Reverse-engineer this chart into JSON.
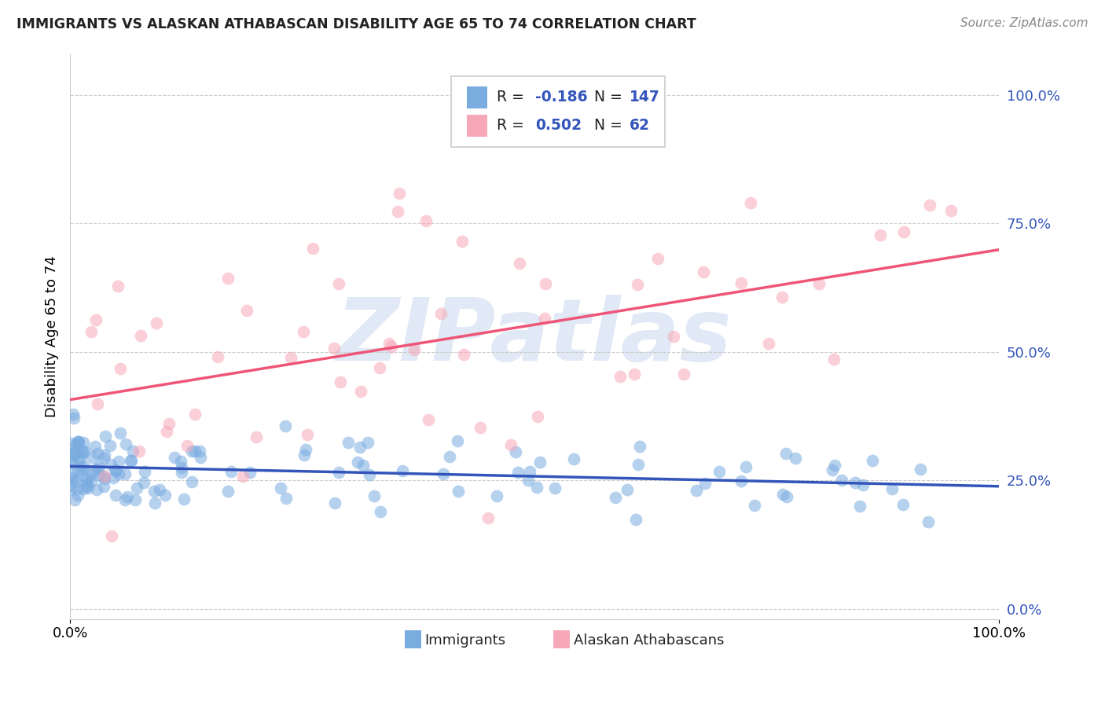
{
  "title": "IMMIGRANTS VS ALASKAN ATHABASCAN DISABILITY AGE 65 TO 74 CORRELATION CHART",
  "source": "Source: ZipAtlas.com",
  "ylabel": "Disability Age 65 to 74",
  "blue_R": -0.186,
  "blue_N": 147,
  "pink_R": 0.502,
  "pink_N": 62,
  "blue_label": "Immigrants",
  "pink_label": "Alaskan Athabascans",
  "blue_color": "#7AACE0",
  "pink_color": "#F7A8B8",
  "blue_line_color": "#3355BB",
  "pink_line_color": "#EE5577",
  "watermark": "ZIPatlas",
  "watermark_color": "#C8D8EE",
  "background_color": "#FFFFFF",
  "blue_line_y0": 0.28,
  "blue_line_y1": 0.245,
  "pink_line_y0": 0.35,
  "pink_line_y1": 0.75,
  "ytick_positions": [
    0.0,
    0.25,
    0.5,
    0.75,
    1.0
  ],
  "ytick_labels": [
    "0.0%",
    "25.0%",
    "50.0%",
    "75.0%",
    "100.0%"
  ],
  "xtick_positions": [
    0.0,
    1.0
  ],
  "xtick_labels": [
    "0.0%",
    "100.0%"
  ],
  "figsize": [
    14.06,
    8.92
  ],
  "dpi": 100
}
